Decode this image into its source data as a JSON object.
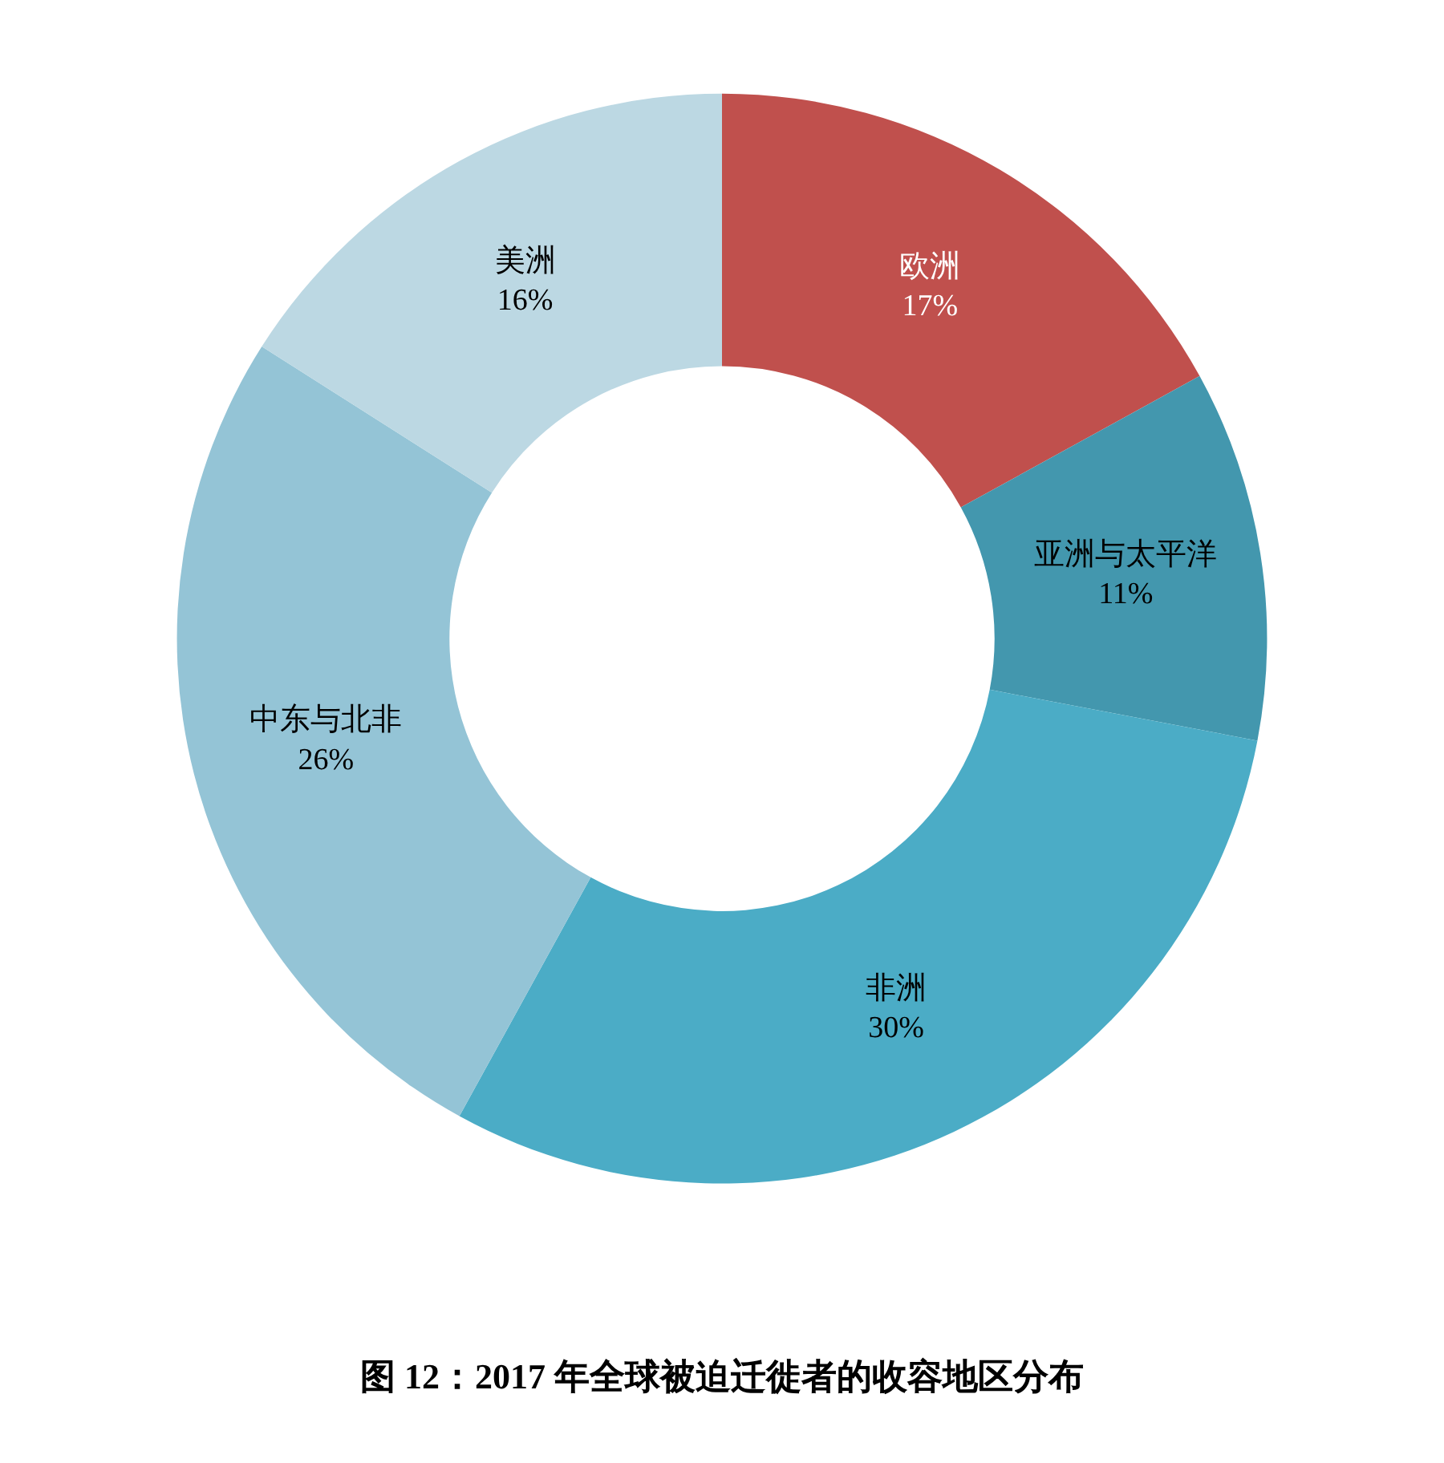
{
  "chart_data": {
    "type": "donut",
    "title": "图 12：2017 年全球被迫迁徙者的收容地区分布",
    "categories": [
      "欧洲",
      "亚洲与太平洋",
      "非洲",
      "中东与北非",
      "美洲"
    ],
    "values": [
      17,
      11,
      30,
      26,
      16
    ],
    "value_labels": [
      "17%",
      "11%",
      "30%",
      "26%",
      "16%"
    ],
    "colors": [
      "#c0504d",
      "#4397ae",
      "#4bacc6",
      "#94c4d6",
      "#bcd8e3"
    ],
    "legend": false
  }
}
